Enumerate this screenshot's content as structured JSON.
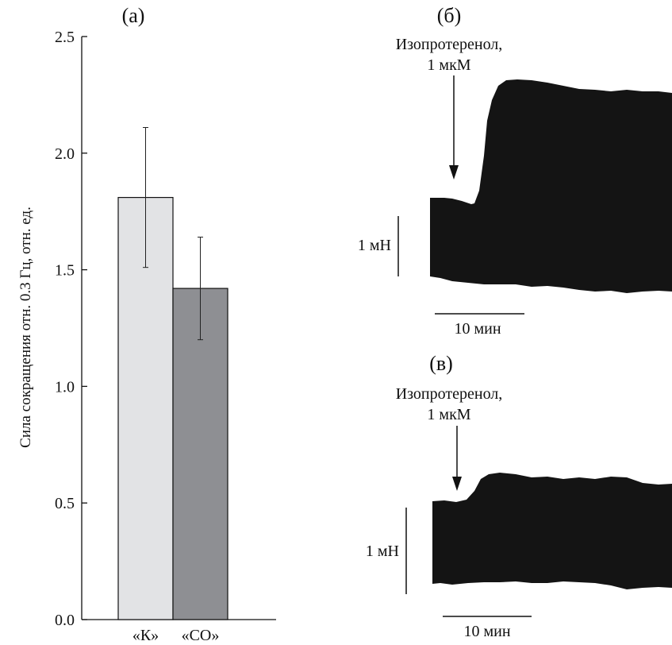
{
  "panels": {
    "a": {
      "label": "(а)",
      "chart_data": {
        "type": "bar",
        "categories": [
          "«К»",
          "«СО»"
        ],
        "values": [
          1.81,
          1.42
        ],
        "errors": [
          0.3,
          0.22
        ],
        "colors": [
          "#e2e3e5",
          "#8e8f93"
        ],
        "ylabel": "Сила сокращения отн. 0.3 Гц, отн. ед.",
        "ylim": [
          0,
          2.5
        ],
        "yticks": [
          "0.0",
          "0.5",
          "1.0",
          "1.5",
          "2.0",
          "2.5"
        ],
        "grid": false
      }
    },
    "b": {
      "label": "(б)",
      "annotation_line1": "Изопротеренол,",
      "annotation_line2": "1 мкМ",
      "scale_force": "1 мН",
      "scale_time": "10 мин"
    },
    "c": {
      "label": "(в)",
      "annotation_line1": "Изопротеренол,",
      "annotation_line2": "1 мкМ",
      "scale_force": "1 мН",
      "scale_time": "10 мин"
    }
  }
}
